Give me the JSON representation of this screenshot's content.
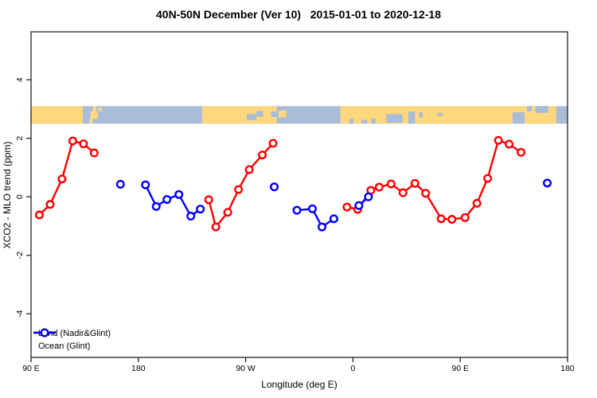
{
  "title": "40N-50N December (Ver 10)   2015-01-01 to 2020-12-18",
  "chart_data": {
    "type": "line",
    "title": "40N-50N December (Ver 10)   2015-01-01 to 2020-12-18",
    "xlabel": "Longitude (deg E)",
    "ylabel": "XCO2 - MLO trend (ppm)",
    "xlim": [
      90,
      540
    ],
    "ylim": [
      -5.49,
      5.64
    ],
    "grid": false,
    "x_ticks": [
      {
        "value": 90,
        "label": "90 E"
      },
      {
        "value": 180,
        "label": "180"
      },
      {
        "value": 270,
        "label": "90 W"
      },
      {
        "value": 360,
        "label": "0"
      },
      {
        "value": 450,
        "label": "90 E"
      },
      {
        "value": 540,
        "label": "180"
      }
    ],
    "y_ticks": [
      {
        "value": 4,
        "label": "4"
      },
      {
        "value": 2,
        "label": "2"
      },
      {
        "value": 0,
        "label": "0"
      },
      {
        "value": -2,
        "label": "-2"
      },
      {
        "value": -4,
        "label": "-4"
      }
    ],
    "legend": [
      {
        "label": "Land (Nadir&Glint)",
        "color": "#ff0000"
      },
      {
        "label": "Ocean (Glint)",
        "color": "#0000ff"
      }
    ],
    "legend_position": "bottom-left",
    "series": [
      {
        "name": "Land (Nadir&Glint)",
        "color": "#ff0000",
        "segments": [
          [
            [
              97,
              -0.62
            ],
            [
              106,
              -0.26
            ],
            [
              116,
              0.61
            ],
            [
              125,
              1.91
            ],
            [
              134,
              1.81
            ],
            [
              143,
              1.5
            ]
          ],
          [
            [
              239,
              -0.1
            ],
            [
              245,
              -1.03
            ],
            [
              255,
              -0.53
            ],
            [
              264,
              0.25
            ],
            [
              273,
              0.93
            ],
            [
              284,
              1.43
            ],
            [
              293,
              1.83
            ]
          ],
          [
            [
              355,
              -0.35
            ],
            [
              364,
              -0.43
            ],
            [
              375,
              0.22
            ],
            [
              382,
              0.33
            ],
            [
              392,
              0.44
            ],
            [
              402,
              0.14
            ],
            [
              412,
              0.46
            ],
            [
              421,
              0.12
            ],
            [
              434,
              -0.75
            ],
            [
              443,
              -0.77
            ],
            [
              454,
              -0.71
            ],
            [
              464,
              -0.22
            ],
            [
              473,
              0.63
            ],
            [
              482,
              1.93
            ],
            [
              491,
              1.8
            ],
            [
              501,
              1.52
            ]
          ]
        ]
      },
      {
        "name": "Ocean (Glint)",
        "color": "#0000ff",
        "segments": [
          [
            [
              165,
              0.43
            ]
          ],
          [
            [
              186,
              0.41
            ],
            [
              195,
              -0.33
            ],
            [
              204,
              -0.09
            ],
            [
              214,
              0.08
            ],
            [
              224,
              -0.66
            ],
            [
              232,
              -0.42
            ]
          ],
          [
            [
              294,
              0.34
            ]
          ],
          [
            [
              313,
              -0.46
            ],
            [
              326,
              -0.41
            ],
            [
              334,
              -1.03
            ],
            [
              344,
              -0.75
            ]
          ],
          [
            [
              365,
              -0.3
            ],
            [
              373,
              0.0
            ]
          ],
          [
            [
              523,
              0.47
            ]
          ]
        ]
      }
    ],
    "map_band": {
      "y_range": [
        2.5,
        3.1
      ],
      "ocean_color": "#a9bcd8",
      "land_color": "#ffd77e",
      "land_rects": [
        [
          90,
          133.5,
          0,
          1
        ],
        [
          139,
          141.5,
          0.7,
          1
        ],
        [
          140,
          146,
          0.3,
          0.72
        ],
        [
          142,
          144.5,
          0,
          0.35
        ],
        [
          146.5,
          149.5,
          0.1,
          0.28
        ],
        [
          233.5,
          296,
          0,
          1
        ],
        [
          297.5,
          304,
          0.25,
          0.65
        ],
        [
          349.5,
          530.5,
          0,
          1
        ]
      ],
      "water_rects": [
        [
          271,
          279,
          0.45,
          0.8
        ],
        [
          279,
          284.5,
          0.28,
          0.6
        ],
        [
          291.5,
          296,
          0.3,
          0.62
        ],
        [
          357,
          360.5,
          0.72,
          1
        ],
        [
          367,
          372,
          0.78,
          1
        ],
        [
          375.5,
          379,
          0.7,
          1
        ],
        [
          388,
          401.5,
          0.45,
          0.95
        ],
        [
          406.5,
          412,
          0.3,
          1
        ],
        [
          415.5,
          418.5,
          0.35,
          0.65
        ],
        [
          431,
          435,
          0.38,
          0.56
        ],
        [
          494,
          504,
          0.35,
          1
        ],
        [
          506,
          510,
          0,
          0.3
        ],
        [
          513,
          524,
          0,
          0.38
        ]
      ]
    }
  }
}
